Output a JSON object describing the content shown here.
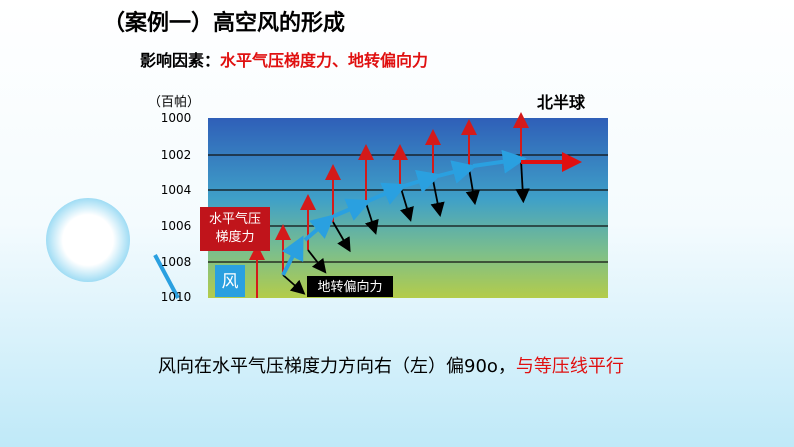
{
  "header": {
    "title": "（案例一）高空风的形成",
    "factor_label": "影响因素：",
    "factor_value": "水平气压梯度力、地转偏向力"
  },
  "diagram": {
    "unit": "（百帕）",
    "hemisphere": "北半球",
    "isobars": [
      "1000",
      "1002",
      "1004",
      "1006",
      "1008",
      "1010"
    ],
    "pressure_gradient_label": "水平气压梯度力",
    "wind_label": "风",
    "coriolis_label": "地转偏向力"
  },
  "conclusion": {
    "text": "风向在水平气压梯度力方向右（左）偏90o，",
    "highlight": "与等压线平行"
  }
}
